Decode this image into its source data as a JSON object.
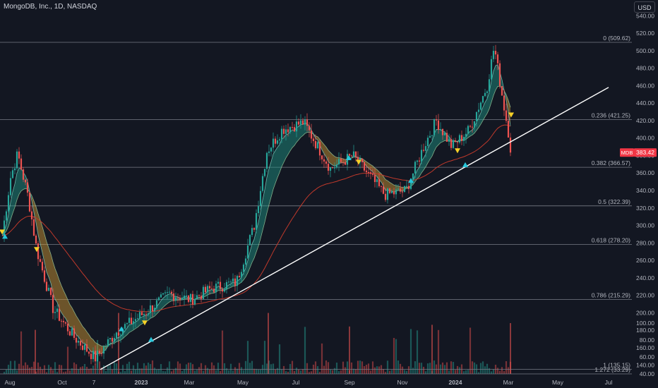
{
  "header": {
    "symbol_line": "MongoDB, Inc., 1D, NASDAQ",
    "currency": "USD"
  },
  "colors": {
    "background": "#131722",
    "grid_text": "#b2b5be",
    "fib_line": "#787b86",
    "trendline": "#ffffff",
    "candle_up": "#26a69a",
    "candle_down": "#ef5350",
    "sma_red": "#c0392b",
    "ribbon_bull": "#1e9c8a",
    "ribbon_bear": "#d9a035",
    "price_tag": "#f23645",
    "buy_marker": "#26c6da",
    "sell_marker": "#f5d027"
  },
  "chart_data": {
    "type": "candlestick",
    "title": "MongoDB, Inc., 1D, NASDAQ",
    "currency": "USD",
    "x_ticks": [
      "Aug",
      "Oct",
      "7",
      "2023",
      "Mar",
      "May",
      "Jul",
      "Sep",
      "Nov",
      "2024",
      "Mar",
      "May",
      "Jul"
    ],
    "price_axis": {
      "ticks": [
        540,
        520,
        500,
        480,
        460,
        440,
        420,
        400,
        380,
        360,
        340,
        320,
        300,
        280,
        260,
        240,
        220,
        200,
        180,
        160,
        140
      ],
      "tick_labels": [
        "540.00",
        "520.00",
        "500.00",
        "480.00",
        "460.00",
        "440.00",
        "420.00",
        "400.00",
        "380.00",
        "360.00",
        "340.00",
        "320.00",
        "300.00",
        "280.00",
        "260.00",
        "240.00",
        "220.00",
        "200.00",
        "180.00",
        "160.00",
        "140.00"
      ],
      "range": [
        130,
        550
      ]
    },
    "volume_axis": {
      "ticks": [
        100,
        80,
        60,
        40
      ],
      "tick_labels": [
        "100.00",
        "80.00",
        "60.00",
        "40.00"
      ]
    },
    "current_price": {
      "symbol": "MDB",
      "value": 383.42,
      "label": "383.42"
    },
    "fib_levels": [
      {
        "ratio": "0",
        "value": 509.62,
        "label": "0 (509.62)"
      },
      {
        "ratio": "0.236",
        "value": 421.25,
        "label": "0.236 (421.25)"
      },
      {
        "ratio": "0.382",
        "value": 366.57,
        "label": "0.382 (366.57)"
      },
      {
        "ratio": "0.5",
        "value": 322.39,
        "label": "0.5 (322.39)"
      },
      {
        "ratio": "0.618",
        "value": 278.2,
        "label": "0.618 (278.20)"
      },
      {
        "ratio": "0.786",
        "value": 215.29,
        "label": "0.786 (215.29)"
      },
      {
        "ratio": "1",
        "value": 135.15,
        "label": "1 (135.15)"
      },
      {
        "ratio": "1.272",
        "value": 33.29,
        "label": "1.272 (33.29)"
      }
    ],
    "price_path": [
      {
        "t": "Aug 2022",
        "close": 288
      },
      {
        "t": "mid Aug 2022",
        "close": 355
      },
      {
        "t": "late Aug 2022",
        "close": 382
      },
      {
        "t": "early Sep 2022",
        "close": 332
      },
      {
        "t": "mid Sep 2022",
        "close": 272
      },
      {
        "t": "Oct 2022",
        "close": 205
      },
      {
        "t": "late Oct 2022",
        "close": 172
      },
      {
        "t": "Nov 2022",
        "close": 148
      },
      {
        "t": "late Nov 2022",
        "close": 178
      },
      {
        "t": "Jan 2023",
        "close": 200
      },
      {
        "t": "Feb 2023",
        "close": 222
      },
      {
        "t": "Mar 2023",
        "close": 215
      },
      {
        "t": "Apr 2023",
        "close": 228
      },
      {
        "t": "May 2023",
        "close": 235
      },
      {
        "t": "early Jun 2023",
        "close": 300
      },
      {
        "t": "mid Jun 2023",
        "close": 385
      },
      {
        "t": "Jul 2023",
        "close": 410
      },
      {
        "t": "mid Jul 2023",
        "close": 418
      },
      {
        "t": "Aug 2023",
        "close": 365
      },
      {
        "t": "mid Aug 2023",
        "close": 380
      },
      {
        "t": "Sep 2023",
        "close": 355
      },
      {
        "t": "Oct 2023",
        "close": 335
      },
      {
        "t": "Nov 2023",
        "close": 340
      },
      {
        "t": "early Dec 2023",
        "close": 390
      },
      {
        "t": "mid Dec 2023",
        "close": 420
      },
      {
        "t": "Jan 2024",
        "close": 390
      },
      {
        "t": "late Jan 2024",
        "close": 410
      },
      {
        "t": "early Feb 2024",
        "close": 460
      },
      {
        "t": "mid Feb 2024",
        "close": 505
      },
      {
        "t": "late Feb 2024",
        "close": 445
      },
      {
        "t": "Mar 2024",
        "close": 383.42
      }
    ],
    "trendline": {
      "from": {
        "t": "Nov 2022",
        "value": 135
      },
      "to": {
        "t": "Jun 2024",
        "value": 458
      }
    },
    "signals": [
      {
        "t": "Aug 2022",
        "type": "sell",
        "value": 292
      },
      {
        "t": "Aug 2022",
        "type": "buy",
        "value": 288
      },
      {
        "t": "Sep 2022",
        "type": "sell",
        "value": 272
      },
      {
        "t": "Dec 2022",
        "type": "buy",
        "value": 182
      },
      {
        "t": "Jan 2023",
        "type": "sell",
        "value": 188
      },
      {
        "t": "Jan 2023",
        "type": "buy",
        "value": 170
      },
      {
        "t": "Aug 2023",
        "type": "buy",
        "value": 378
      },
      {
        "t": "Aug 2023",
        "type": "sell",
        "value": 372
      },
      {
        "t": "Nov 2023",
        "type": "buy",
        "value": 352
      },
      {
        "t": "Jan 2024",
        "type": "sell",
        "value": 385
      },
      {
        "t": "Jan 2024",
        "type": "buy",
        "value": 370
      },
      {
        "t": "Mar 2024",
        "type": "sell",
        "value": 426
      }
    ]
  }
}
